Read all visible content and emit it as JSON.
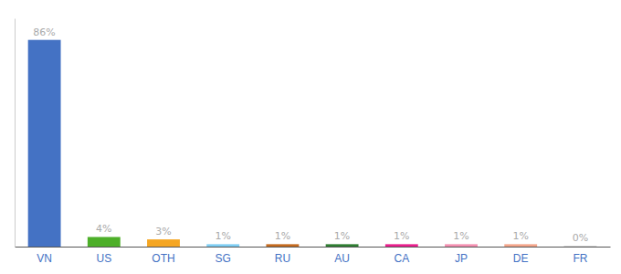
{
  "chart_data": {
    "type": "bar",
    "categories": [
      "VN",
      "US",
      "OTH",
      "SG",
      "RU",
      "AU",
      "CA",
      "JP",
      "DE",
      "FR"
    ],
    "values": [
      86,
      4,
      3,
      1,
      1,
      1,
      1,
      1,
      1,
      0.3
    ],
    "value_labels": [
      "86%",
      "4%",
      "3%",
      "1%",
      "1%",
      "1%",
      "1%",
      "1%",
      "1%",
      "0%"
    ],
    "colors": [
      "#4472c4",
      "#4daf29",
      "#f5a623",
      "#7ecef4",
      "#c46a1f",
      "#2e7d32",
      "#e91e8c",
      "#f48fb1",
      "#f4a58a",
      "#cccccc"
    ],
    "ylim": [
      0,
      95
    ],
    "grid": false,
    "data_labels": true,
    "tick_labels": "x"
  }
}
